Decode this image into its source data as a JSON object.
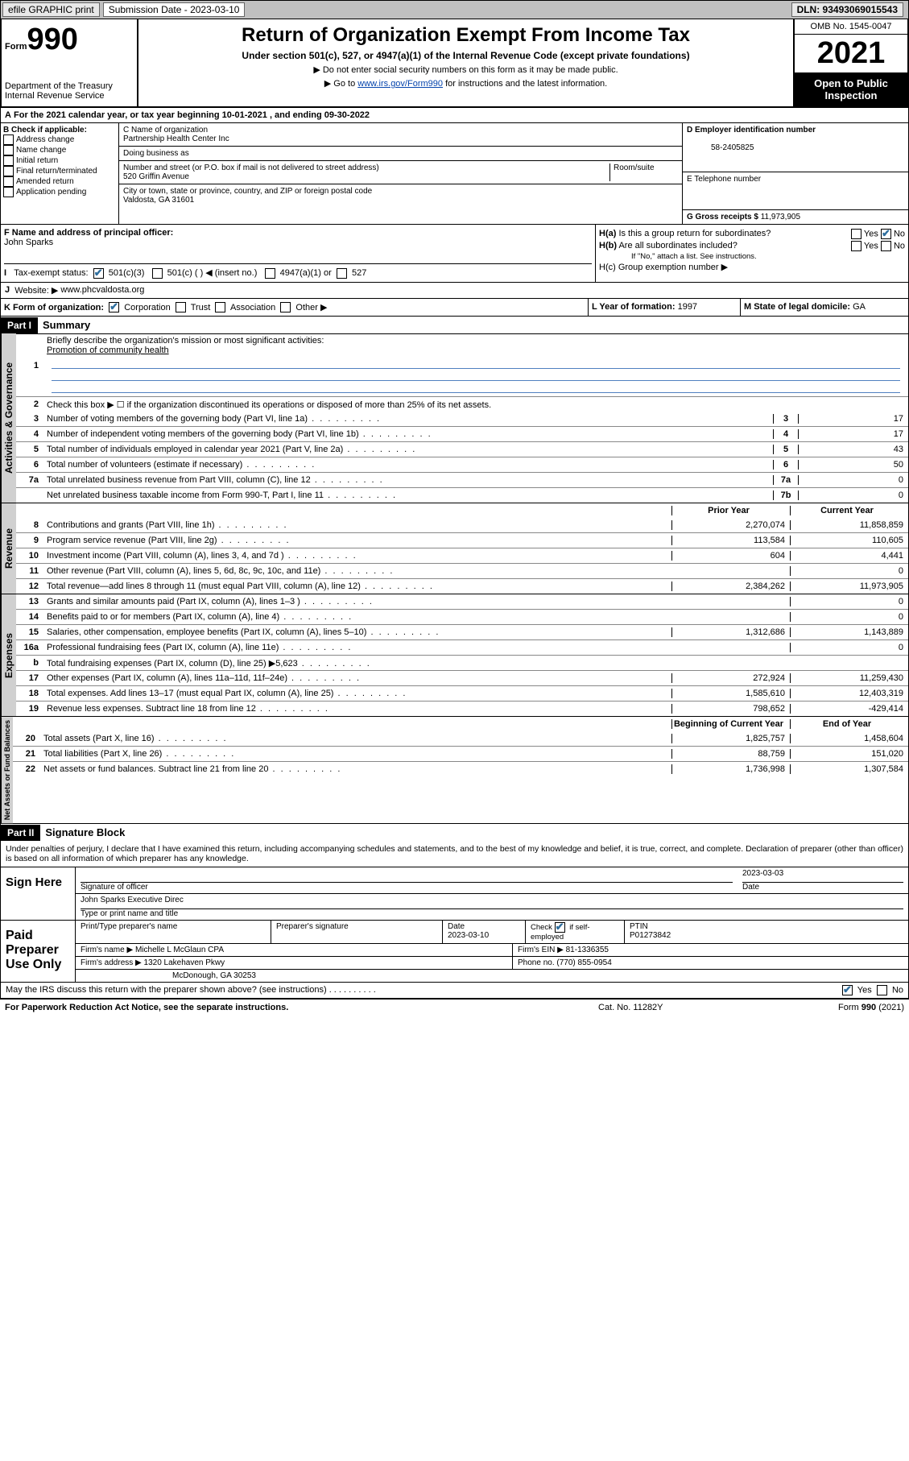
{
  "top": {
    "efile": "efile GRAPHIC print",
    "submission_label": "Submission Date - 2023-03-10",
    "dln": "DLN: 93493069015543"
  },
  "header": {
    "form_word": "Form",
    "form_num": "990",
    "dept": "Department of the Treasury",
    "irs": "Internal Revenue Service",
    "title": "Return of Organization Exempt From Income Tax",
    "sub": "Under section 501(c), 527, or 4947(a)(1) of the Internal Revenue Code (except private foundations)",
    "note1": "▶ Do not enter social security numbers on this form as it may be made public.",
    "note2_pre": "▶ Go to ",
    "note2_link": "www.irs.gov/Form990",
    "note2_post": " for instructions and the latest information.",
    "omb": "OMB No. 1545-0047",
    "year": "2021",
    "open": "Open to Public Inspection"
  },
  "line_a": "For the 2021 calendar year, or tax year beginning 10-01-2021    , and ending 09-30-2022",
  "section_b": {
    "label": "B Check if applicable:",
    "opts": [
      "Address change",
      "Name change",
      "Initial return",
      "Final return/terminated",
      "Amended return",
      "Application pending"
    ]
  },
  "section_c": {
    "name_label": "C Name of organization",
    "name": "Partnership Health Center Inc",
    "dba_label": "Doing business as",
    "addr_label": "Number and street (or P.O. box if mail is not delivered to street address)",
    "room_label": "Room/suite",
    "addr": "520 Griffin Avenue",
    "city_label": "City or town, state or province, country, and ZIP or foreign postal code",
    "city": "Valdosta, GA  31601"
  },
  "section_d": {
    "label": "D Employer identification number",
    "val": "58-2405825"
  },
  "section_e": {
    "label": "E Telephone number",
    "val": ""
  },
  "section_g": {
    "label": "G Gross receipts $",
    "val": "11,973,905"
  },
  "section_f": {
    "label": "F Name and address of principal officer:",
    "val": "John Sparks"
  },
  "section_h": {
    "ha": "H(a)  Is this a group return for subordinates?",
    "hb": "H(b)  Are all subordinates included?",
    "hb_note": "If \"No,\" attach a list. See instructions.",
    "hc": "H(c)  Group exemption number ▶",
    "yes": "Yes",
    "no": "No"
  },
  "section_i": {
    "label": "Tax-exempt status:",
    "opt1": "501(c)(3)",
    "opt2": "501(c) (   ) ◀ (insert no.)",
    "opt3": "4947(a)(1) or",
    "opt4": "527"
  },
  "section_j": {
    "label": "Website: ▶",
    "val": "www.phcvaldosta.org"
  },
  "section_k": {
    "label": "K Form of organization:",
    "opts": [
      "Corporation",
      "Trust",
      "Association",
      "Other ▶"
    ]
  },
  "section_l": {
    "label": "L Year of formation:",
    "val": "1997"
  },
  "section_m": {
    "label": "M State of legal domicile:",
    "val": "GA"
  },
  "part1": {
    "header": "Part I",
    "title": "Summary",
    "line1_label": "Briefly describe the organization's mission or most significant activities:",
    "line1_val": "Promotion of community health",
    "line2": "Check this box ▶ ☐  if the organization discontinued its operations or disposed of more than 25% of its net assets.",
    "tabs": {
      "gov": "Activities & Governance",
      "rev": "Revenue",
      "exp": "Expenses",
      "net": "Net Assets or Fund Balances"
    },
    "gov_lines": [
      {
        "n": "3",
        "d": "Number of voting members of the governing body (Part VI, line 1a)",
        "box": "3",
        "v": "17"
      },
      {
        "n": "4",
        "d": "Number of independent voting members of the governing body (Part VI, line 1b)",
        "box": "4",
        "v": "17"
      },
      {
        "n": "5",
        "d": "Total number of individuals employed in calendar year 2021 (Part V, line 2a)",
        "box": "5",
        "v": "43"
      },
      {
        "n": "6",
        "d": "Total number of volunteers (estimate if necessary)",
        "box": "6",
        "v": "50"
      },
      {
        "n": "7a",
        "d": "Total unrelated business revenue from Part VIII, column (C), line 12",
        "box": "7a",
        "v": "0"
      },
      {
        "n": "",
        "d": "Net unrelated business taxable income from Form 990-T, Part I, line 11",
        "box": "7b",
        "v": "0"
      }
    ],
    "col_prior": "Prior Year",
    "col_curr": "Current Year",
    "rev_lines": [
      {
        "n": "8",
        "d": "Contributions and grants (Part VIII, line 1h)",
        "p": "2,270,074",
        "c": "11,858,859"
      },
      {
        "n": "9",
        "d": "Program service revenue (Part VIII, line 2g)",
        "p": "113,584",
        "c": "110,605"
      },
      {
        "n": "10",
        "d": "Investment income (Part VIII, column (A), lines 3, 4, and 7d )",
        "p": "604",
        "c": "4,441"
      },
      {
        "n": "11",
        "d": "Other revenue (Part VIII, column (A), lines 5, 6d, 8c, 9c, 10c, and 11e)",
        "p": "",
        "c": "0"
      },
      {
        "n": "12",
        "d": "Total revenue—add lines 8 through 11 (must equal Part VIII, column (A), line 12)",
        "p": "2,384,262",
        "c": "11,973,905"
      }
    ],
    "exp_lines": [
      {
        "n": "13",
        "d": "Grants and similar amounts paid (Part IX, column (A), lines 1–3 )",
        "p": "",
        "c": "0"
      },
      {
        "n": "14",
        "d": "Benefits paid to or for members (Part IX, column (A), line 4)",
        "p": "",
        "c": "0"
      },
      {
        "n": "15",
        "d": "Salaries, other compensation, employee benefits (Part IX, column (A), lines 5–10)",
        "p": "1,312,686",
        "c": "1,143,889"
      },
      {
        "n": "16a",
        "d": "Professional fundraising fees (Part IX, column (A), line 11e)",
        "p": "",
        "c": "0"
      },
      {
        "n": "b",
        "d": "Total fundraising expenses (Part IX, column (D), line 25) ▶5,623",
        "p": "grey",
        "c": "grey"
      },
      {
        "n": "17",
        "d": "Other expenses (Part IX, column (A), lines 11a–11d, 11f–24e)",
        "p": "272,924",
        "c": "11,259,430"
      },
      {
        "n": "18",
        "d": "Total expenses. Add lines 13–17 (must equal Part IX, column (A), line 25)",
        "p": "1,585,610",
        "c": "12,403,319"
      },
      {
        "n": "19",
        "d": "Revenue less expenses. Subtract line 18 from line 12",
        "p": "798,652",
        "c": "-429,414"
      }
    ],
    "net_head": {
      "p": "Beginning of Current Year",
      "c": "End of Year"
    },
    "net_lines": [
      {
        "n": "20",
        "d": "Total assets (Part X, line 16)",
        "p": "1,825,757",
        "c": "1,458,604"
      },
      {
        "n": "21",
        "d": "Total liabilities (Part X, line 26)",
        "p": "88,759",
        "c": "151,020"
      },
      {
        "n": "22",
        "d": "Net assets or fund balances. Subtract line 21 from line 20",
        "p": "1,736,998",
        "c": "1,307,584"
      }
    ]
  },
  "part2": {
    "header": "Part II",
    "title": "Signature Block",
    "penalty": "Under penalties of perjury, I declare that I have examined this return, including accompanying schedules and statements, and to the best of my knowledge and belief, it is true, correct, and complete. Declaration of preparer (other than officer) is based on all information of which preparer has any knowledge.",
    "sign_here": "Sign Here",
    "sig_officer": "Signature of officer",
    "sig_date": "Date",
    "sig_date_val": "2023-03-03",
    "officer_name": "John Sparks  Executive Direc",
    "type_name": "Type or print name and title",
    "paid": "Paid Preparer Use Only",
    "print_name": "Print/Type preparer's name",
    "prep_sig": "Preparer's signature",
    "date_label": "Date",
    "date_val": "2023-03-10",
    "check_self": "Check ☑ if self-employed",
    "ptin_label": "PTIN",
    "ptin": "P01273842",
    "firm_name_label": "Firm's name    ▶",
    "firm_name": "Michelle L McGlaun CPA",
    "firm_ein_label": "Firm's EIN ▶",
    "firm_ein": "81-1336355",
    "firm_addr_label": "Firm's address ▶",
    "firm_addr1": "1320 Lakehaven Pkwy",
    "firm_addr2": "McDonough, GA  30253",
    "phone_label": "Phone no.",
    "phone": "(770) 855-0954",
    "may_irs": "May the IRS discuss this return with the preparer shown above? (see instructions)",
    "yes": "Yes",
    "no": "No"
  },
  "footer": {
    "left": "For Paperwork Reduction Act Notice, see the separate instructions.",
    "mid": "Cat. No. 11282Y",
    "right": "Form 990 (2021)"
  },
  "colors": {
    "checkmark": "#2e6e9e",
    "link": "#0645ad",
    "grey_bg": "#c8c8c8",
    "rule": "#5080c0"
  }
}
